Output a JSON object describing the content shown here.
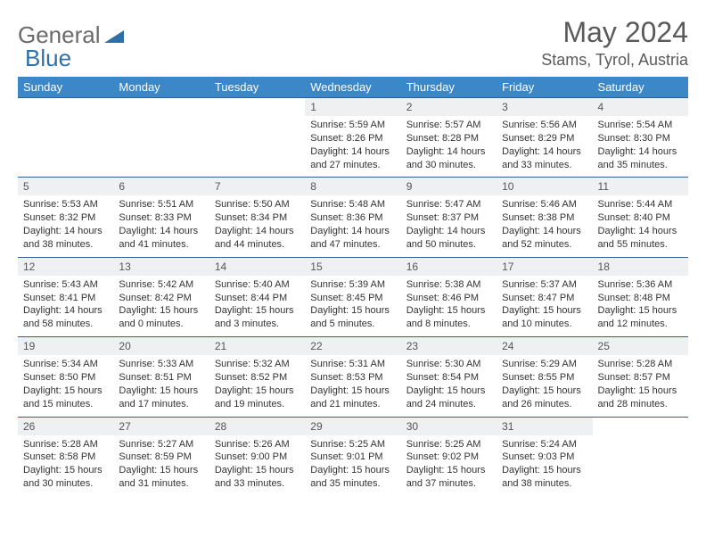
{
  "logo": {
    "general": "General",
    "blue": "Blue"
  },
  "title": "May 2024",
  "location": "Stams, Tyrol, Austria",
  "header_bg": "#3b87c8",
  "daynum_bg": "#eef0f1",
  "border_color": "#2f5f8f",
  "day_headers": [
    "Sunday",
    "Monday",
    "Tuesday",
    "Wednesday",
    "Thursday",
    "Friday",
    "Saturday"
  ],
  "weeks": [
    [
      null,
      null,
      null,
      {
        "n": "1",
        "sr": "5:59 AM",
        "ss": "8:26 PM",
        "dl": "14 hours and 27 minutes."
      },
      {
        "n": "2",
        "sr": "5:57 AM",
        "ss": "8:28 PM",
        "dl": "14 hours and 30 minutes."
      },
      {
        "n": "3",
        "sr": "5:56 AM",
        "ss": "8:29 PM",
        "dl": "14 hours and 33 minutes."
      },
      {
        "n": "4",
        "sr": "5:54 AM",
        "ss": "8:30 PM",
        "dl": "14 hours and 35 minutes."
      }
    ],
    [
      {
        "n": "5",
        "sr": "5:53 AM",
        "ss": "8:32 PM",
        "dl": "14 hours and 38 minutes."
      },
      {
        "n": "6",
        "sr": "5:51 AM",
        "ss": "8:33 PM",
        "dl": "14 hours and 41 minutes."
      },
      {
        "n": "7",
        "sr": "5:50 AM",
        "ss": "8:34 PM",
        "dl": "14 hours and 44 minutes."
      },
      {
        "n": "8",
        "sr": "5:48 AM",
        "ss": "8:36 PM",
        "dl": "14 hours and 47 minutes."
      },
      {
        "n": "9",
        "sr": "5:47 AM",
        "ss": "8:37 PM",
        "dl": "14 hours and 50 minutes."
      },
      {
        "n": "10",
        "sr": "5:46 AM",
        "ss": "8:38 PM",
        "dl": "14 hours and 52 minutes."
      },
      {
        "n": "11",
        "sr": "5:44 AM",
        "ss": "8:40 PM",
        "dl": "14 hours and 55 minutes."
      }
    ],
    [
      {
        "n": "12",
        "sr": "5:43 AM",
        "ss": "8:41 PM",
        "dl": "14 hours and 58 minutes."
      },
      {
        "n": "13",
        "sr": "5:42 AM",
        "ss": "8:42 PM",
        "dl": "15 hours and 0 minutes."
      },
      {
        "n": "14",
        "sr": "5:40 AM",
        "ss": "8:44 PM",
        "dl": "15 hours and 3 minutes."
      },
      {
        "n": "15",
        "sr": "5:39 AM",
        "ss": "8:45 PM",
        "dl": "15 hours and 5 minutes."
      },
      {
        "n": "16",
        "sr": "5:38 AM",
        "ss": "8:46 PM",
        "dl": "15 hours and 8 minutes."
      },
      {
        "n": "17",
        "sr": "5:37 AM",
        "ss": "8:47 PM",
        "dl": "15 hours and 10 minutes."
      },
      {
        "n": "18",
        "sr": "5:36 AM",
        "ss": "8:48 PM",
        "dl": "15 hours and 12 minutes."
      }
    ],
    [
      {
        "n": "19",
        "sr": "5:34 AM",
        "ss": "8:50 PM",
        "dl": "15 hours and 15 minutes."
      },
      {
        "n": "20",
        "sr": "5:33 AM",
        "ss": "8:51 PM",
        "dl": "15 hours and 17 minutes."
      },
      {
        "n": "21",
        "sr": "5:32 AM",
        "ss": "8:52 PM",
        "dl": "15 hours and 19 minutes."
      },
      {
        "n": "22",
        "sr": "5:31 AM",
        "ss": "8:53 PM",
        "dl": "15 hours and 21 minutes."
      },
      {
        "n": "23",
        "sr": "5:30 AM",
        "ss": "8:54 PM",
        "dl": "15 hours and 24 minutes."
      },
      {
        "n": "24",
        "sr": "5:29 AM",
        "ss": "8:55 PM",
        "dl": "15 hours and 26 minutes."
      },
      {
        "n": "25",
        "sr": "5:28 AM",
        "ss": "8:57 PM",
        "dl": "15 hours and 28 minutes."
      }
    ],
    [
      {
        "n": "26",
        "sr": "5:28 AM",
        "ss": "8:58 PM",
        "dl": "15 hours and 30 minutes."
      },
      {
        "n": "27",
        "sr": "5:27 AM",
        "ss": "8:59 PM",
        "dl": "15 hours and 31 minutes."
      },
      {
        "n": "28",
        "sr": "5:26 AM",
        "ss": "9:00 PM",
        "dl": "15 hours and 33 minutes."
      },
      {
        "n": "29",
        "sr": "5:25 AM",
        "ss": "9:01 PM",
        "dl": "15 hours and 35 minutes."
      },
      {
        "n": "30",
        "sr": "5:25 AM",
        "ss": "9:02 PM",
        "dl": "15 hours and 37 minutes."
      },
      {
        "n": "31",
        "sr": "5:24 AM",
        "ss": "9:03 PM",
        "dl": "15 hours and 38 minutes."
      },
      null
    ]
  ],
  "labels": {
    "sunrise": "Sunrise:",
    "sunset": "Sunset:",
    "daylight": "Daylight:"
  }
}
